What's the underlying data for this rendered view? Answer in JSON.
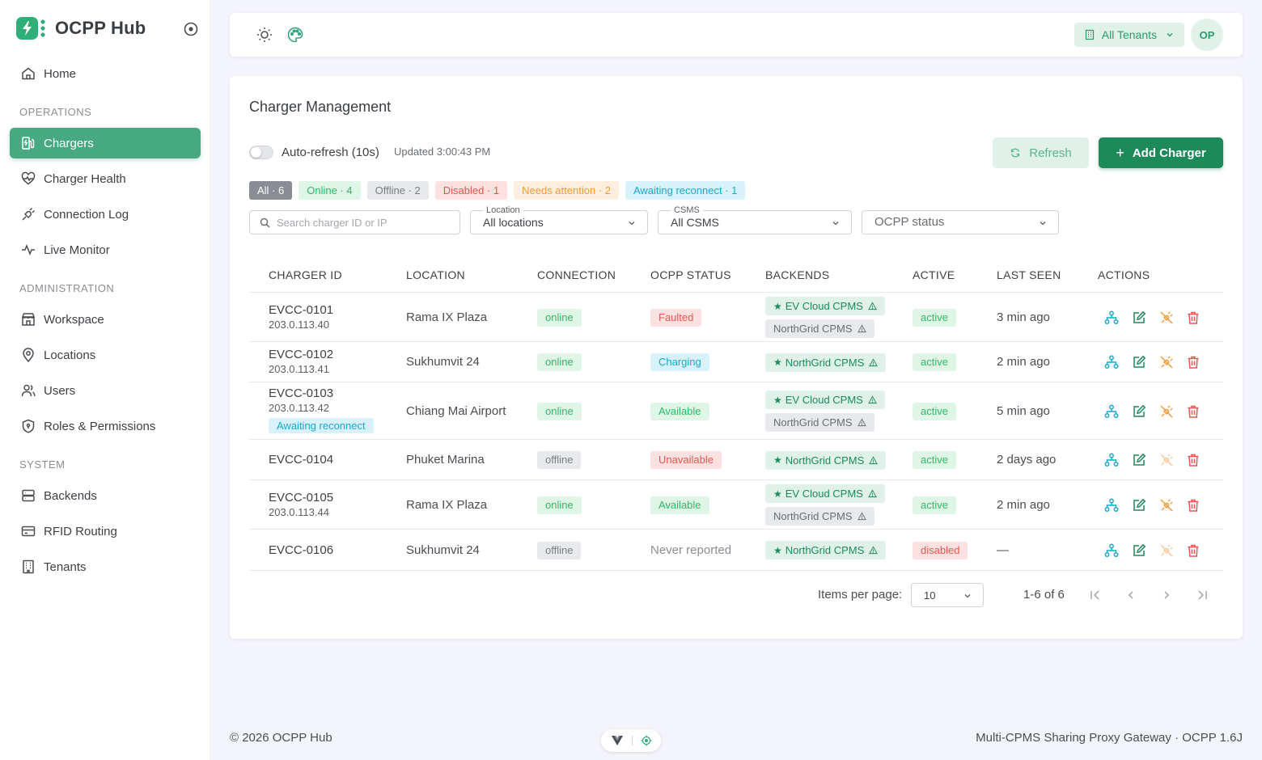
{
  "app": {
    "title": "OCPP Hub"
  },
  "sidebar": {
    "home": "Home",
    "sections": {
      "operations": "OPERATIONS",
      "administration": "ADMINISTRATION",
      "system": "SYSTEM"
    },
    "operations": [
      "Chargers",
      "Charger Health",
      "Connection Log",
      "Live Monitor"
    ],
    "administration": [
      "Workspace",
      "Locations",
      "Users",
      "Roles & Permissions"
    ],
    "system": [
      "Backends",
      "RFID Routing",
      "Tenants"
    ],
    "active_item": "Chargers"
  },
  "topbar": {
    "tenant_label": "All Tenants",
    "avatar_initials": "OP"
  },
  "page": {
    "title": "Charger Management",
    "auto_refresh_label": "Auto-refresh (10s)",
    "auto_refresh_on": false,
    "updated_text": "Updated 3:00:43 PM",
    "refresh_label": "Refresh",
    "add_label": "Add Charger"
  },
  "filters": {
    "chips": [
      {
        "label": "All · 6",
        "bg": "#8a8d94",
        "fg": "#ffffff"
      },
      {
        "label": "Online · 4",
        "bg": "#dff6e6",
        "fg": "#2fb86a"
      },
      {
        "label": "Offline · 2",
        "bg": "#e8e9ec",
        "fg": "#7a7d84"
      },
      {
        "label": "Disabled · 1",
        "bg": "#fde1e1",
        "fg": "#e4574f"
      },
      {
        "label": "Needs attention · 2",
        "bg": "#fdeedd",
        "fg": "#f39a3a"
      },
      {
        "label": "Awaiting reconnect · 1",
        "bg": "#d8f2fb",
        "fg": "#1aa7d1"
      }
    ],
    "search_placeholder": "Search charger ID or IP",
    "location": {
      "label": "Location",
      "value": "All locations"
    },
    "csms": {
      "label": "CSMS",
      "value": "All CSMS"
    },
    "ocpp_status": {
      "placeholder": "OCPP status"
    }
  },
  "table": {
    "columns": [
      "CHARGER ID",
      "LOCATION",
      "CONNECTION",
      "OCPP STATUS",
      "BACKENDS",
      "ACTIVE",
      "LAST SEEN",
      "ACTIONS"
    ],
    "rows": [
      {
        "id": "EVCC-0101",
        "ip": "203.0.113.40",
        "tag": "",
        "location": "Rama IX Plaza",
        "connection": "online",
        "ocpp": "Faulted",
        "ocpp_kind": "faulted",
        "backends": [
          {
            "name": "EV Cloud CPMS",
            "primary": true
          },
          {
            "name": "NorthGrid CPMS",
            "primary": false
          }
        ],
        "active": "active",
        "last_seen": "3 min ago"
      },
      {
        "id": "EVCC-0102",
        "ip": "203.0.113.41",
        "tag": "",
        "location": "Sukhumvit 24",
        "connection": "online",
        "ocpp": "Charging",
        "ocpp_kind": "charging",
        "backends": [
          {
            "name": "NorthGrid CPMS",
            "primary": true
          }
        ],
        "active": "active",
        "last_seen": "2 min ago"
      },
      {
        "id": "EVCC-0103",
        "ip": "203.0.113.42",
        "tag": "Awaiting reconnect",
        "location": "Chiang Mai Airport",
        "connection": "online",
        "ocpp": "Available",
        "ocpp_kind": "available",
        "backends": [
          {
            "name": "EV Cloud CPMS",
            "primary": true
          },
          {
            "name": "NorthGrid CPMS",
            "primary": false
          }
        ],
        "active": "active",
        "last_seen": "5 min ago"
      },
      {
        "id": "EVCC-0104",
        "ip": "",
        "tag": "",
        "location": "Phuket Marina",
        "connection": "offline",
        "ocpp": "Unavailable",
        "ocpp_kind": "unavail",
        "backends": [
          {
            "name": "NorthGrid CPMS",
            "primary": true
          }
        ],
        "active": "active",
        "last_seen": "2 days ago"
      },
      {
        "id": "EVCC-0105",
        "ip": "203.0.113.44",
        "tag": "",
        "location": "Rama IX Plaza",
        "connection": "online",
        "ocpp": "Available",
        "ocpp_kind": "available",
        "backends": [
          {
            "name": "EV Cloud CPMS",
            "primary": true
          },
          {
            "name": "NorthGrid CPMS",
            "primary": false
          }
        ],
        "active": "active",
        "last_seen": "2 min ago"
      },
      {
        "id": "EVCC-0106",
        "ip": "",
        "tag": "",
        "location": "Sukhumvit 24",
        "connection": "offline",
        "ocpp": "Never reported",
        "ocpp_kind": "never",
        "backends": [
          {
            "name": "NorthGrid CPMS",
            "primary": true
          }
        ],
        "active": "disabled",
        "last_seen": "—"
      }
    ]
  },
  "pagination": {
    "items_per_page_label": "Items per page:",
    "items_per_page": "10",
    "range": "1-6 of 6"
  },
  "footer": {
    "copyright": "© 2026 OCPP Hub",
    "tagline": "Multi-CPMS Sharing Proxy Gateway · OCPP 1.6J"
  },
  "colors": {
    "brand": "#1d8a5a",
    "active_nav": "#47a981",
    "accent_light": "#dff1e8"
  }
}
